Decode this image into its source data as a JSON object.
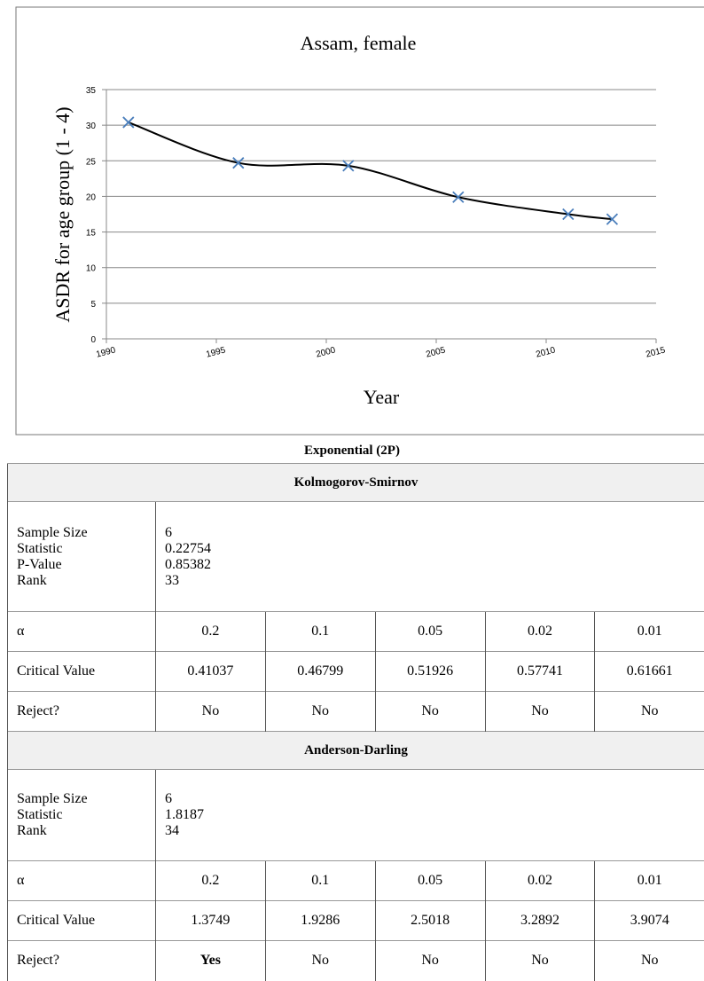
{
  "chart_data": {
    "type": "line",
    "title": "Assam, female",
    "x_label": "Year",
    "y_label": "ASDR for age group  (1 - 4)",
    "x": [
      1991,
      1996,
      2001,
      2006,
      2011,
      2013
    ],
    "values": [
      30.4,
      24.7,
      24.3,
      19.9,
      17.5,
      16.8
    ],
    "line_color": "#000000",
    "marker_color": "#4a7ebb",
    "xlim": [
      1990,
      2015
    ],
    "xticks": [
      1990,
      1995,
      2000,
      2005,
      2010,
      2015
    ],
    "ylim": [
      0,
      35
    ],
    "yticks": [
      0,
      5,
      10,
      15,
      20,
      25,
      30,
      35
    ],
    "grid": true,
    "smooth": true
  },
  "caption": "Exponential (2P)",
  "tests": [
    {
      "title": "Kolmogorov-Smirnov",
      "info_labels": [
        "Sample Size",
        "Statistic",
        "P-Value",
        "Rank"
      ],
      "info_values": [
        "6",
        "0.22754",
        "0.85382",
        "33"
      ],
      "rows": [
        [
          "α",
          "0.2",
          "0.1",
          "0.05",
          "0.02",
          "0.01"
        ],
        [
          "Critical Value",
          "0.41037",
          "0.46799",
          "0.51926",
          "0.57741",
          "0.61661"
        ],
        [
          "Reject?",
          "No",
          "No",
          "No",
          "No",
          "No"
        ]
      ],
      "bold": []
    },
    {
      "title": "Anderson-Darling",
      "info_labels": [
        "Sample Size",
        "Statistic",
        "Rank"
      ],
      "info_values": [
        "6",
        "1.8187",
        "34"
      ],
      "rows": [
        [
          "α",
          "0.2",
          "0.1",
          "0.05",
          "0.02",
          "0.01"
        ],
        [
          "Critical Value",
          "1.3749",
          "1.9286",
          "2.5018",
          "3.2892",
          "3.9074"
        ],
        [
          "Reject?",
          "Yes",
          "No",
          "No",
          "No",
          "No"
        ]
      ],
      "bold": [
        [
          2,
          1
        ]
      ]
    }
  ]
}
